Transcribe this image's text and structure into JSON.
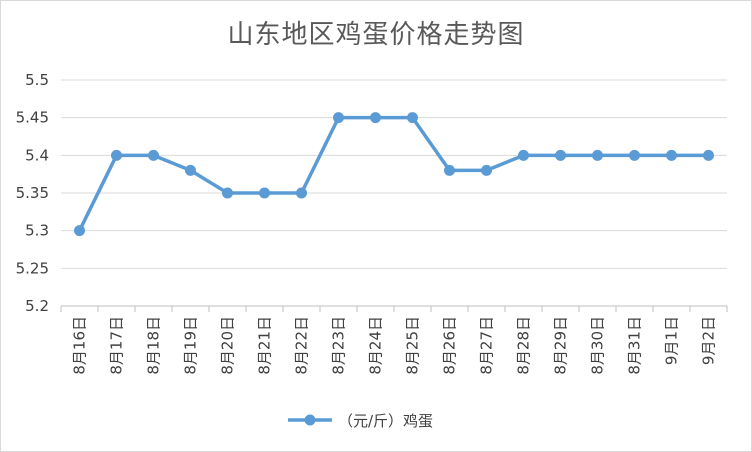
{
  "chart_data": {
    "type": "line",
    "title": "山东地区鸡蛋价格走势图",
    "categories": [
      "8月16日",
      "8月17日",
      "8月18日",
      "8月19日",
      "8月20日",
      "8月21日",
      "8月22日",
      "8月23日",
      "8月24日",
      "8月25日",
      "8月26日",
      "8月27日",
      "8月28日",
      "8月29日",
      "8月30日",
      "8月31日",
      "9月1日",
      "9月2日"
    ],
    "series": [
      {
        "name": "（元/斤）鸡蛋",
        "values": [
          5.3,
          5.4,
          5.4,
          5.38,
          5.35,
          5.35,
          5.35,
          5.45,
          5.45,
          5.45,
          5.38,
          5.38,
          5.4,
          5.4,
          5.4,
          5.4,
          5.4,
          5.4
        ]
      }
    ],
    "ylim": [
      5.2,
      5.5
    ],
    "yticks": [
      5.2,
      5.25,
      5.3,
      5.35,
      5.4,
      5.45,
      5.5
    ],
    "ytick_labels": [
      "5.2",
      "5.25",
      "5.3",
      "5.35",
      "5.4",
      "5.45",
      "5.5"
    ],
    "grid": true,
    "legend": "bottom",
    "colors": {
      "line": "#5b9bd5",
      "grid": "#d9d9d9",
      "axis": "#bfbfbf"
    }
  }
}
